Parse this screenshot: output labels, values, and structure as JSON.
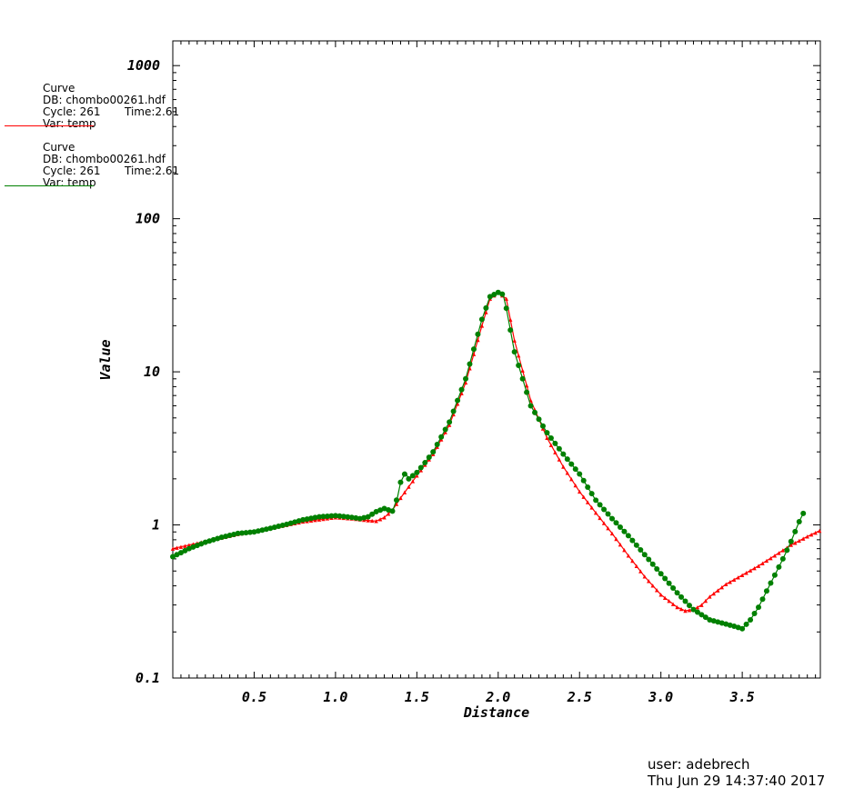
{
  "legend": [
    {
      "title": "Curve",
      "db": "DB: chombo00261.hdf",
      "cycle": "Cycle: 261",
      "time": "Time:2.61",
      "var": "Var: temp",
      "color": "#ff0000"
    },
    {
      "title": "Curve",
      "db": "DB: chombo00261.hdf",
      "cycle": "Cycle: 261",
      "time": "Time:2.61",
      "var": "Var: temp",
      "color": "#008000"
    }
  ],
  "footer": {
    "user": "user: adebrech",
    "date": "Thu Jun 29 14:37:40 2017"
  },
  "chart_data": {
    "type": "line",
    "title": "",
    "xlabel": "Distance",
    "ylabel": "Value",
    "xlim": [
      0.0,
      3.98
    ],
    "ylim": [
      0.1,
      1450
    ],
    "yscale": "log",
    "x_ticks": [
      "0.5",
      "1.0",
      "1.5",
      "2.0",
      "2.5",
      "3.0",
      "3.5"
    ],
    "y_ticks": [
      "0.1",
      "1",
      "10",
      "100",
      "1000"
    ],
    "grid": false,
    "legend_position": "top-left",
    "series": [
      {
        "color": "#ff0000",
        "marker": "triangle",
        "x": [
          0.0,
          0.2,
          0.4,
          0.6,
          0.8,
          1.0,
          1.1,
          1.2,
          1.25,
          1.3,
          1.35,
          1.4,
          1.5,
          1.6,
          1.7,
          1.8,
          1.9,
          1.95,
          2.0,
          2.05,
          2.1,
          2.2,
          2.3,
          2.4,
          2.5,
          2.6,
          2.7,
          2.8,
          2.9,
          3.0,
          3.1,
          3.15,
          3.2,
          3.25,
          3.3,
          3.4,
          3.5,
          3.6,
          3.7,
          3.8,
          3.9,
          3.98
        ],
        "y": [
          0.7,
          0.78,
          0.87,
          0.95,
          1.05,
          1.12,
          1.1,
          1.07,
          1.06,
          1.12,
          1.25,
          1.5,
          2.1,
          2.9,
          4.5,
          8.5,
          20,
          30,
          33,
          30,
          16,
          6.5,
          3.7,
          2.4,
          1.65,
          1.2,
          0.88,
          0.63,
          0.46,
          0.35,
          0.29,
          0.275,
          0.28,
          0.3,
          0.34,
          0.41,
          0.47,
          0.54,
          0.63,
          0.74,
          0.84,
          0.92
        ]
      },
      {
        "color": "#008000",
        "marker": "circle",
        "x": [
          0.0,
          0.1,
          0.2,
          0.3,
          0.4,
          0.5,
          0.6,
          0.7,
          0.8,
          0.9,
          1.0,
          1.1,
          1.15,
          1.2,
          1.25,
          1.3,
          1.35,
          1.38,
          1.4,
          1.43,
          1.45,
          1.5,
          1.55,
          1.6,
          1.7,
          1.8,
          1.9,
          1.95,
          2.0,
          2.03,
          2.05,
          2.1,
          2.2,
          2.3,
          2.4,
          2.5,
          2.6,
          2.7,
          2.8,
          2.9,
          3.0,
          3.1,
          3.2,
          3.3,
          3.4,
          3.45,
          3.5,
          3.55,
          3.6,
          3.65,
          3.7,
          3.75,
          3.8,
          3.85,
          3.88
        ],
        "y": [
          0.62,
          0.7,
          0.77,
          0.83,
          0.88,
          0.9,
          0.95,
          1.01,
          1.08,
          1.13,
          1.15,
          1.12,
          1.1,
          1.13,
          1.22,
          1.28,
          1.23,
          1.5,
          1.9,
          2.2,
          2.0,
          2.2,
          2.55,
          3.0,
          4.7,
          9.0,
          22,
          31,
          33,
          32,
          26,
          13.5,
          6.0,
          4.0,
          2.9,
          2.15,
          1.45,
          1.1,
          0.85,
          0.64,
          0.48,
          0.36,
          0.28,
          0.24,
          0.225,
          0.218,
          0.21,
          0.24,
          0.29,
          0.37,
          0.47,
          0.6,
          0.78,
          1.05,
          1.22
        ]
      }
    ]
  }
}
